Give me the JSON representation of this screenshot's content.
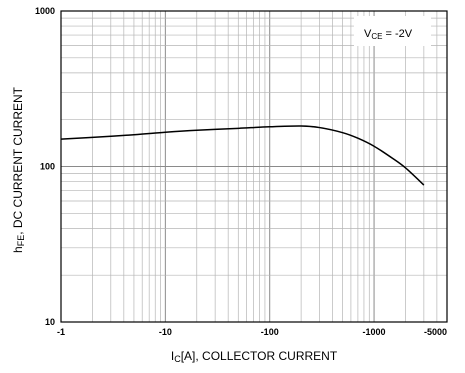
{
  "chart_data": {
    "type": "line",
    "x_scale": "log",
    "y_scale": "log",
    "xlim": [
      -1,
      -5000
    ],
    "ylim": [
      10,
      1000
    ],
    "x_ticks": [
      {
        "value": -1,
        "label": "-1"
      },
      {
        "value": -10,
        "label": "-10"
      },
      {
        "value": -100,
        "label": "-100"
      },
      {
        "value": -1000,
        "label": "-1000"
      },
      {
        "value": -5000,
        "label": "-5000"
      }
    ],
    "y_ticks": [
      {
        "value": 10,
        "label": "10"
      },
      {
        "value": 100,
        "label": "100"
      },
      {
        "value": 1000,
        "label": "1000"
      }
    ],
    "xlabel": {
      "main": "I",
      "sub": "C",
      "rest": "[A], COLLECTOR CURRENT"
    },
    "ylabel": {
      "main": "h",
      "sub": "FE",
      "rest": ", DC CURRENT CURRENT"
    },
    "grid": true,
    "legend": {
      "position": "top-right",
      "main": "V",
      "sub": "CE",
      "rest": " = -2V"
    },
    "series": [
      {
        "x": [
          -1,
          -2,
          -5,
          -10,
          -20,
          -50,
          -100,
          -200,
          -300,
          -500,
          -700,
          -1000,
          -1500,
          -2000,
          -3000
        ],
        "y": [
          150,
          154,
          160,
          166,
          171,
          176,
          180,
          182,
          178,
          165,
          152,
          135,
          113,
          98,
          76
        ]
      }
    ],
    "colors": {
      "line": "#000000",
      "grid_major": "#8a8a8a",
      "grid_minor": "#b5b5b5",
      "frame": "#000000"
    }
  }
}
